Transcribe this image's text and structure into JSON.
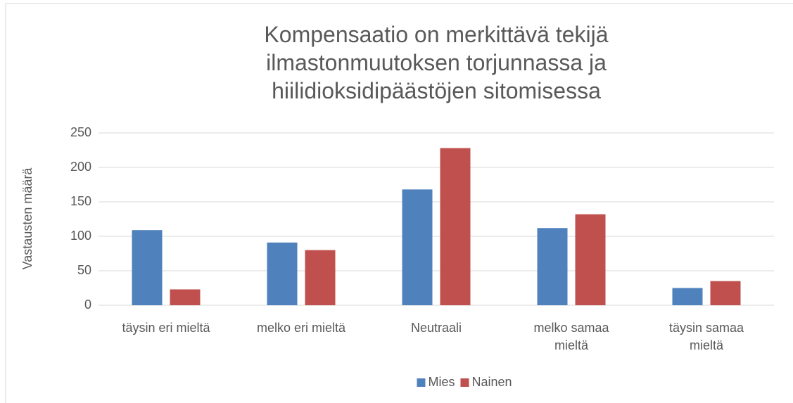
{
  "chart_data": {
    "type": "bar",
    "title": "Kompensaatio on merkittävä tekijä ilmastonmuutoksen torjunnassa ja hiilidioksidipäästöjen sitomisessa",
    "y_label": "Vastausten määrä",
    "categories": [
      "täysin eri mieltä",
      "melko eri mieltä",
      "Neutraali",
      "melko samaa mieltä",
      "täysin samaa mieltä"
    ],
    "series": [
      {
        "name": "Mies",
        "color": "#4f81bd",
        "values": [
          109,
          91,
          168,
          112,
          25
        ]
      },
      {
        "name": "Nainen",
        "color": "#c0504d",
        "values": [
          23,
          80,
          228,
          132,
          35
        ]
      }
    ],
    "ylim": [
      0,
      250
    ],
    "yticks": [
      0,
      50,
      100,
      150,
      200,
      250
    ],
    "grid": true,
    "legend": "bottom"
  }
}
